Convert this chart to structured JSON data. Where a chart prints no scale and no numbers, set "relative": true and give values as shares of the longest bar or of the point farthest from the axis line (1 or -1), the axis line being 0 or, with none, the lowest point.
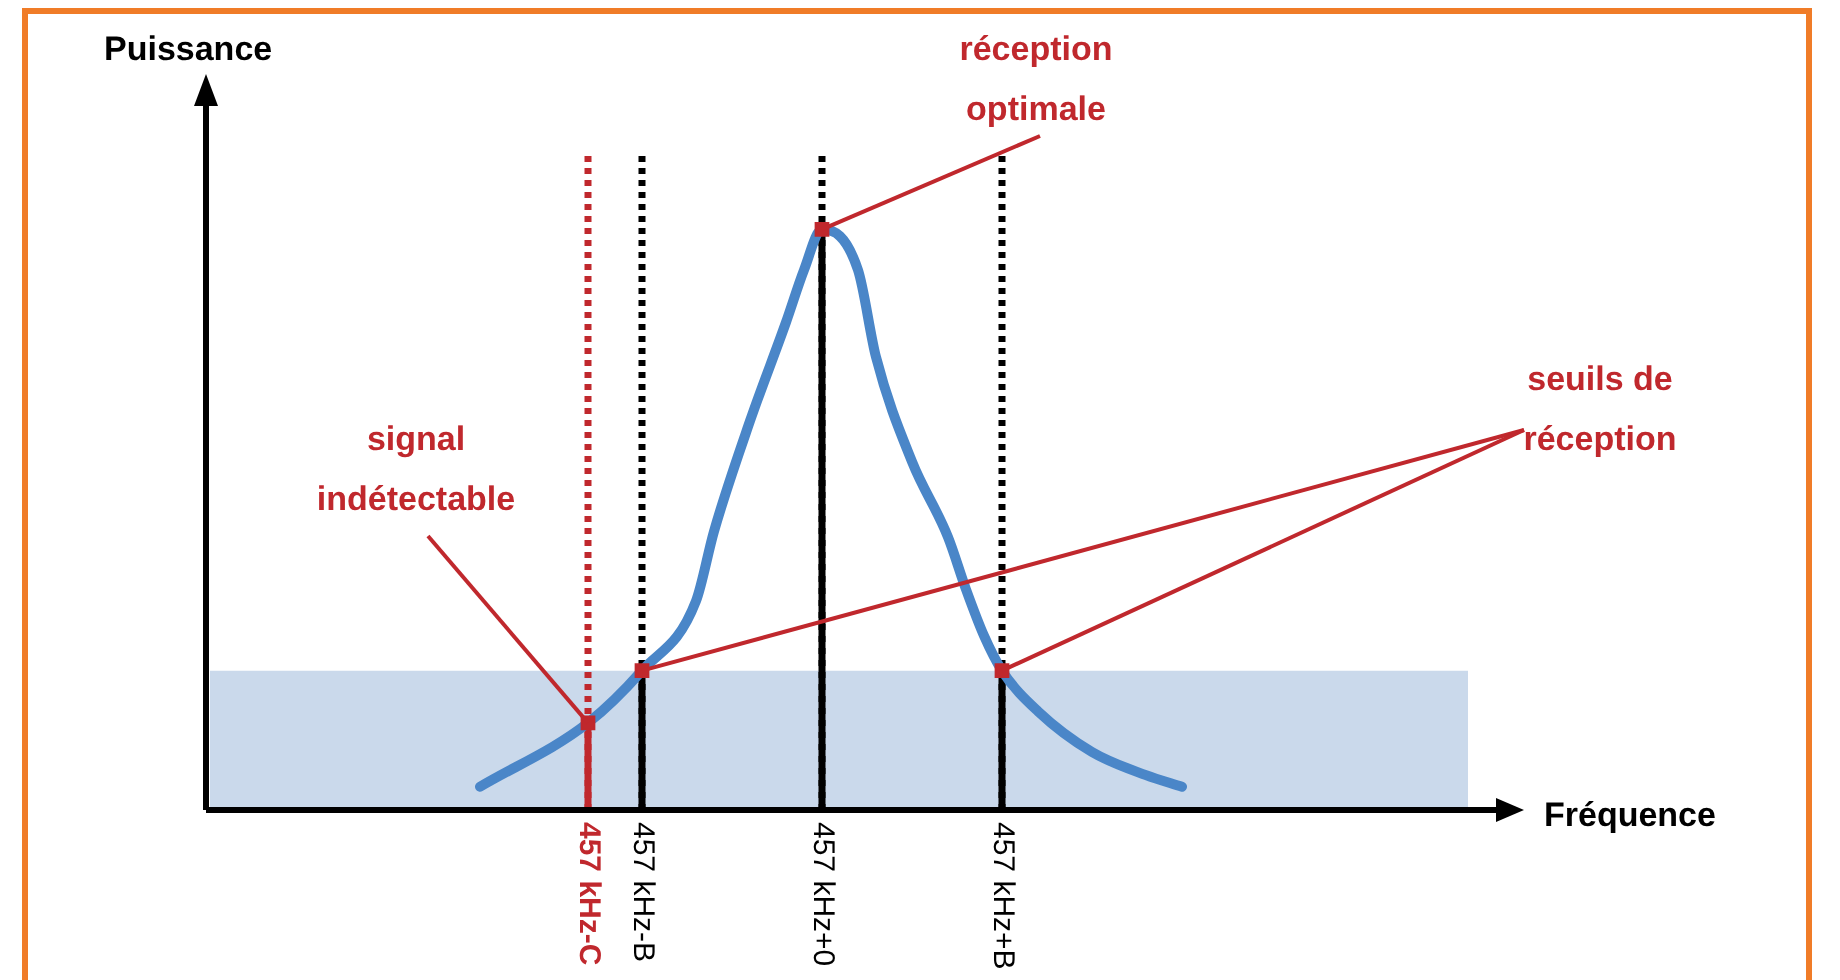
{
  "chart_data": {
    "type": "line",
    "relative": true,
    "xlabel": "Fréquence",
    "ylabel": "Puissance",
    "legend": false,
    "grid": false,
    "categories": [
      null,
      null,
      null,
      null,
      null,
      null,
      null,
      null,
      null,
      null,
      null,
      null,
      null,
      null,
      null,
      null,
      null,
      null,
      null,
      null,
      null,
      "457 kHz-C",
      null,
      null,
      "457 kHz-B",
      null,
      null,
      null,
      null,
      null,
      null,
      null,
      null,
      null,
      "457 kHz+0",
      null,
      null,
      null,
      null,
      null,
      null,
      null,
      null,
      null,
      "457 kHz+B",
      null,
      null,
      null,
      null,
      null,
      null,
      null,
      null,
      null,
      null,
      null,
      null,
      null,
      null,
      null,
      null,
      null,
      null,
      null,
      null,
      null,
      null,
      null,
      null,
      null,
      null,
      null
    ],
    "series": [
      {
        "color": "#4a86c8",
        "marker": "none",
        "values": [
          null,
          null,
          null,
          null,
          null,
          null,
          null,
          null,
          null,
          null,
          null,
          null,
          null,
          null,
          null,
          0.04,
          null,
          null,
          null,
          null,
          null,
          0.15,
          null,
          null,
          0.24,
          null,
          null,
          0.36,
          0.48,
          null,
          0.67,
          null,
          0.84,
          0.93,
          1,
          null,
          0.93,
          0.78,
          null,
          0.6,
          null,
          0.47,
          0.38,
          0.3,
          0.24,
          null,
          0.17,
          null,
          null,
          0.1,
          null,
          null,
          0.06,
          null,
          0.04,
          null,
          null,
          null,
          null,
          null,
          null,
          null,
          null,
          null,
          null,
          null,
          null,
          null,
          null,
          null,
          null,
          null
        ]
      },
      {
        "type": "scatter",
        "color": "#c0282d",
        "marker": "square",
        "x": [
          "457 kHz-C",
          "457 kHz-B",
          "457 kHz+0",
          "457 kHz+B"
        ],
        "values": [
          0.15,
          0.24,
          1,
          0.24
        ]
      }
    ],
    "bands": [
      {
        "axis": "y",
        "from": 0,
        "to": 0.24,
        "color": "#cad9eb"
      }
    ],
    "ref_lines": [
      {
        "axis": "x",
        "value": "457 kHz-C",
        "color": "#c0282d",
        "line_style": "dotted"
      },
      {
        "axis": "x",
        "value": "457 kHz-B",
        "color": "#000000",
        "line_style": "dotted"
      },
      {
        "axis": "x",
        "value": "457 kHz+0",
        "color": "#000000",
        "line_style": "dotted"
      },
      {
        "axis": "x",
        "value": "457 kHz+B",
        "color": "#000000",
        "line_style": "dotted"
      }
    ],
    "annotations": [
      {
        "text": "réception optimale",
        "x": "457 kHz+0",
        "y": 1
      },
      {
        "text": "seuils de réception",
        "x": "457 kHz-B",
        "y": 0.24
      },
      {
        "text": "signal indétectable",
        "x": "457 kHz-C",
        "y": 0.15
      }
    ]
  }
}
